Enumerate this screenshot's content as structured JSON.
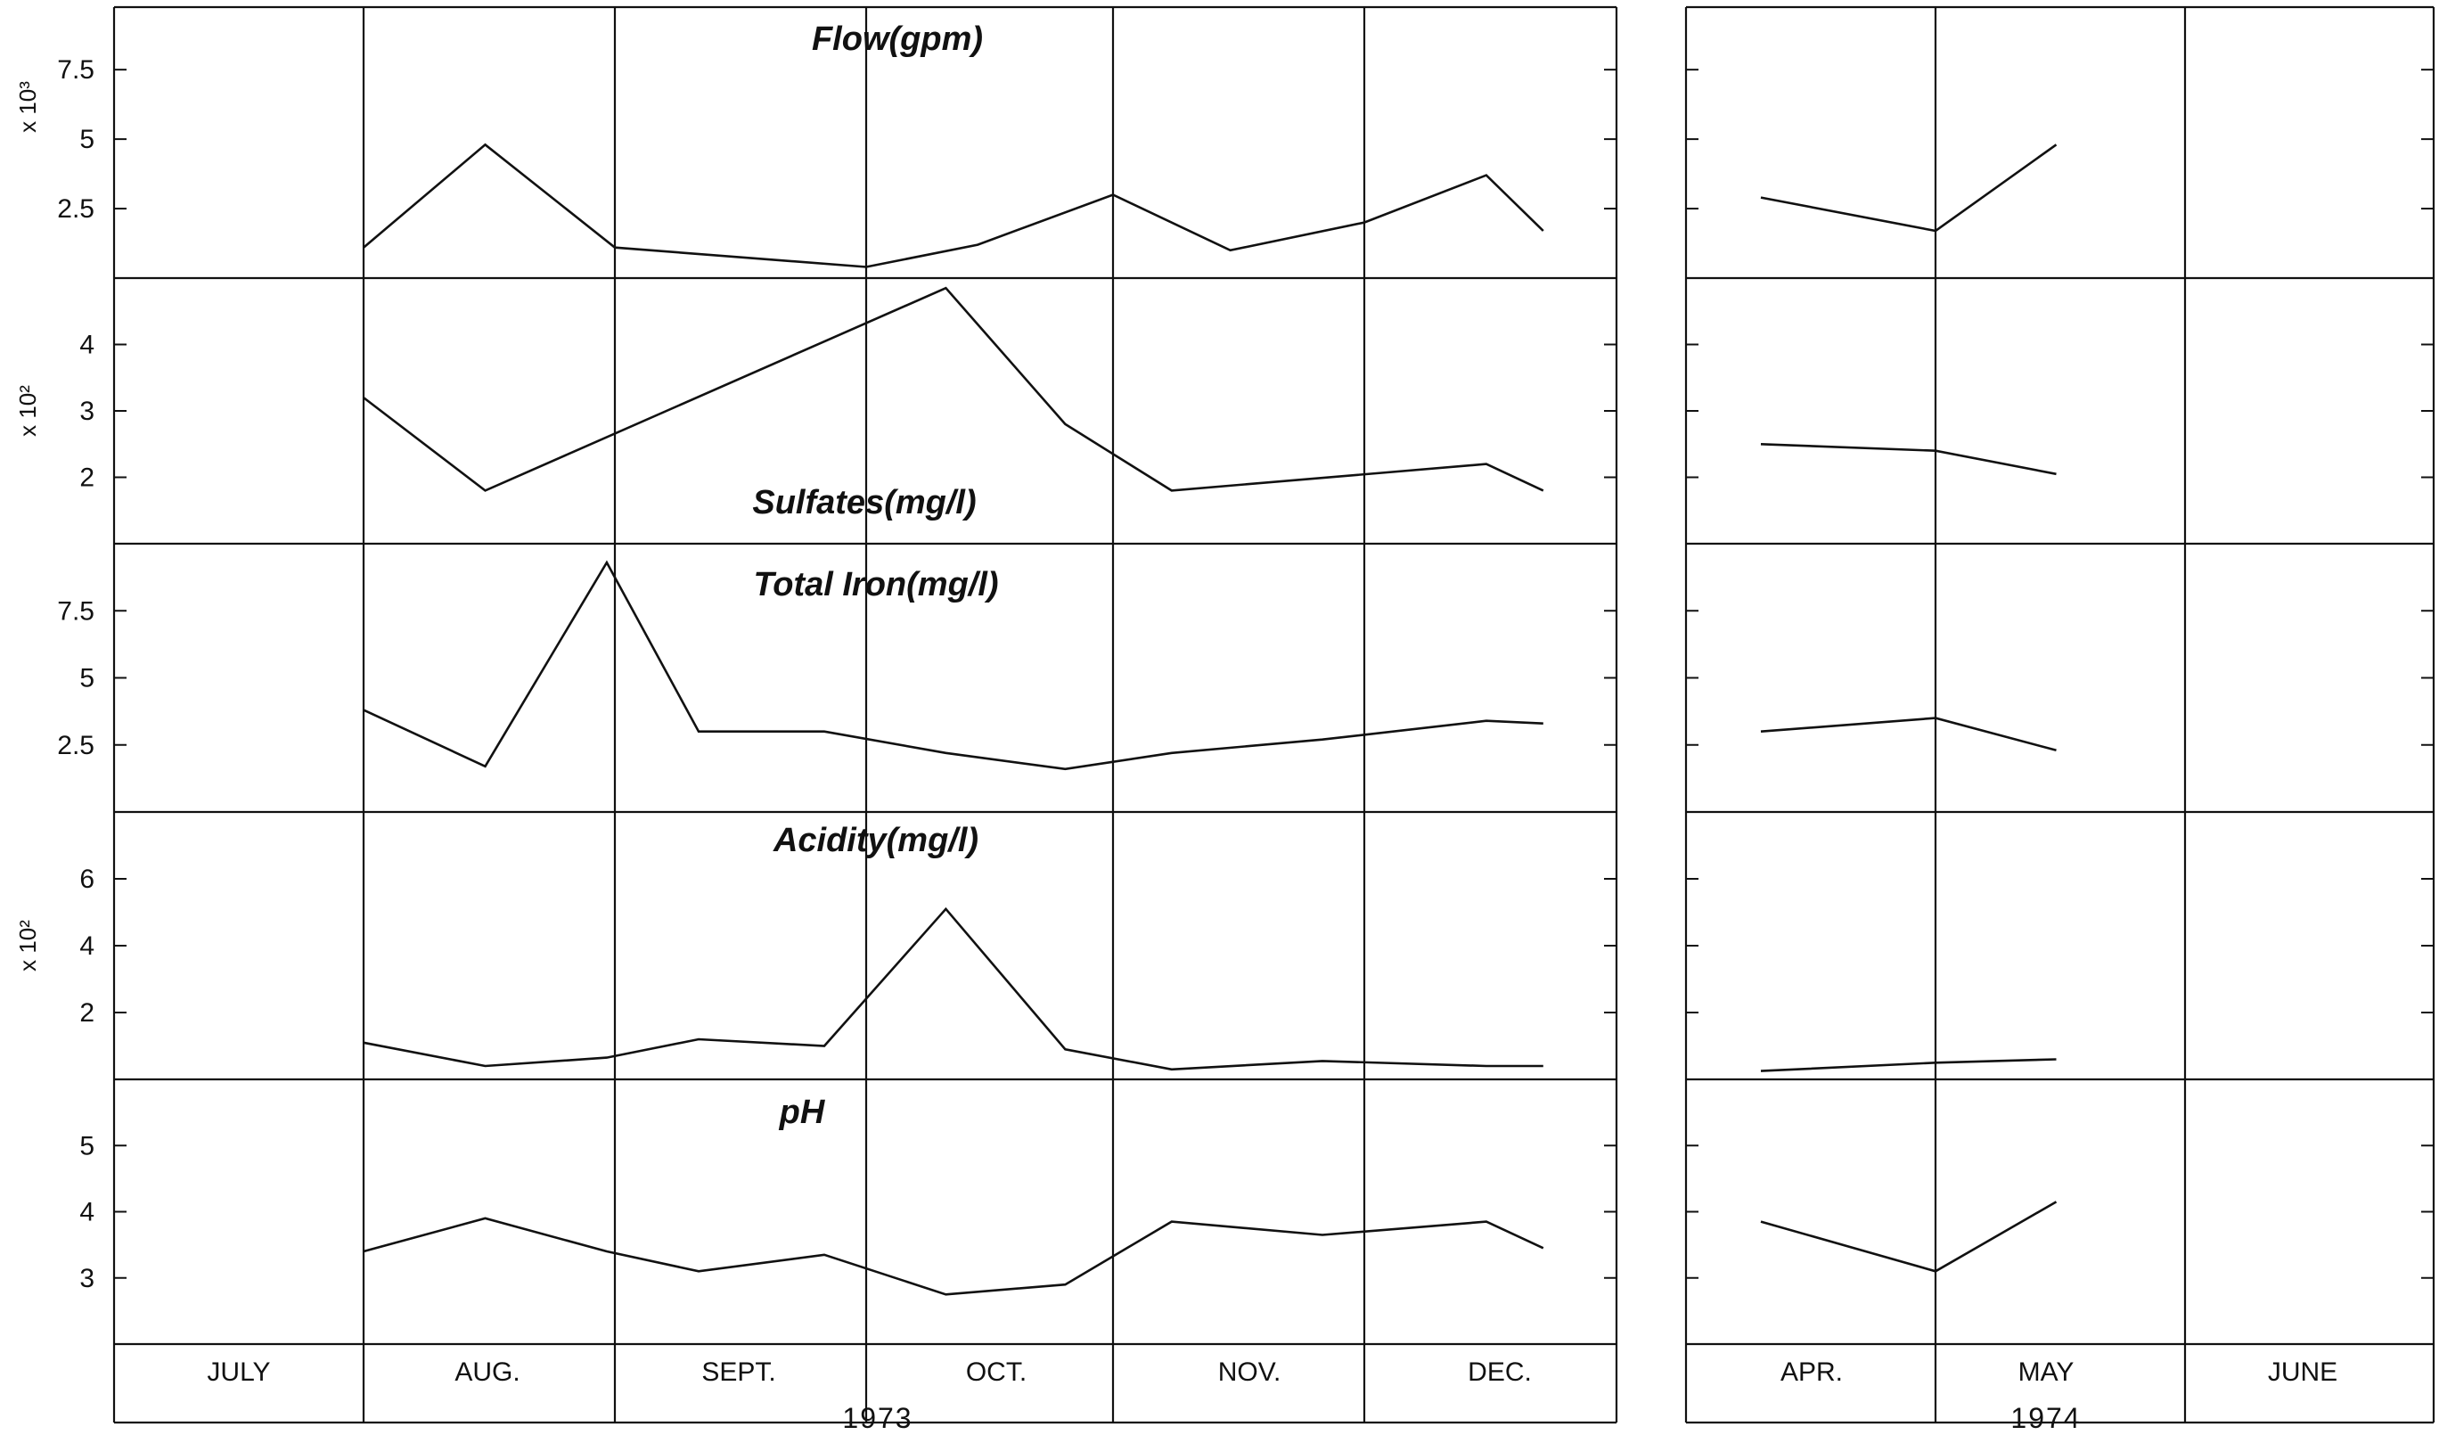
{
  "figure": {
    "months_1973": [
      "JULY",
      "AUG.",
      "SEPT.",
      "OCT.",
      "NOV.",
      "DEC."
    ],
    "months_1974": [
      "APR.",
      "MAY",
      "JUNE"
    ],
    "year_1973": "1973",
    "year_1974": "1974"
  },
  "chart_data": [
    {
      "type": "line",
      "title": "Flow(gpm)",
      "ylabel": "x 10³",
      "yticks": [
        "2.5",
        "5",
        "7.5"
      ],
      "ytick_values": [
        2.5,
        5,
        7.5
      ],
      "ylim": [
        0,
        9.75
      ],
      "segments": [
        {
          "x": [
            "1973-08-01",
            "1973-08-16",
            "1973-09-01",
            "1973-10-01",
            "1973-10-15",
            "1973-11-01",
            "1973-11-15",
            "1973-12-01",
            "1973-12-16",
            "1973-12-23"
          ],
          "y": [
            1.1,
            4.8,
            1.1,
            0.4,
            1.2,
            3.0,
            1.0,
            2.0,
            3.7,
            1.7
          ]
        },
        {
          "x": [
            "1974-04-10",
            "1974-05-01",
            "1974-05-16"
          ],
          "y": [
            2.9,
            1.7,
            4.8
          ]
        }
      ]
    },
    {
      "type": "line",
      "title": "Sulfates(mg/l)",
      "ylabel": "x 10²",
      "yticks": [
        "2",
        "3",
        "4"
      ],
      "ytick_values": [
        2,
        3,
        4
      ],
      "ylim": [
        1,
        5
      ],
      "segments": [
        {
          "x": [
            "1973-08-01",
            "1973-08-16",
            "1973-10-11",
            "1973-10-26",
            "1973-11-08",
            "1973-12-16",
            "1973-12-23"
          ],
          "y": [
            3.2,
            1.8,
            4.85,
            2.8,
            1.8,
            2.2,
            1.8
          ]
        },
        {
          "x": [
            "1974-04-10",
            "1974-05-01",
            "1974-05-16"
          ],
          "y": [
            2.5,
            2.4,
            2.05
          ]
        }
      ]
    },
    {
      "type": "line",
      "title": "Total    Iron(mg/l)",
      "ylabel": "",
      "yticks": [
        "2.5",
        "5",
        "7.5"
      ],
      "ytick_values": [
        2.5,
        5,
        7.5
      ],
      "ylim": [
        0,
        10
      ],
      "segments": [
        {
          "x": [
            "1973-08-01",
            "1973-08-16",
            "1973-08-31",
            "1973-09-11",
            "1973-09-26",
            "1973-10-11",
            "1973-10-26",
            "1973-11-08",
            "1973-11-26",
            "1973-12-16",
            "1973-12-23"
          ],
          "y": [
            3.8,
            1.7,
            9.3,
            3.0,
            3.0,
            2.2,
            1.6,
            2.2,
            2.7,
            3.4,
            3.3
          ]
        },
        {
          "x": [
            "1974-04-10",
            "1974-05-01",
            "1974-05-16"
          ],
          "y": [
            3.0,
            3.5,
            2.3
          ]
        }
      ]
    },
    {
      "type": "line",
      "title": "Acidity(mg/l)",
      "ylabel": "x 10²",
      "yticks": [
        "2",
        "4",
        "6"
      ],
      "ytick_values": [
        2,
        4,
        6
      ],
      "ylim": [
        0,
        8
      ],
      "segments": [
        {
          "x": [
            "1973-08-01",
            "1973-08-16",
            "1973-08-31",
            "1973-09-11",
            "1973-09-26",
            "1973-10-11",
            "1973-10-26",
            "1973-11-08",
            "1973-11-26",
            "1973-12-16",
            "1973-12-23"
          ],
          "y": [
            1.1,
            0.4,
            0.65,
            1.2,
            1.0,
            5.1,
            0.9,
            0.3,
            0.55,
            0.4,
            0.4
          ]
        },
        {
          "x": [
            "1974-04-10",
            "1974-05-01",
            "1974-05-16"
          ],
          "y": [
            0.25,
            0.5,
            0.6
          ]
        }
      ]
    },
    {
      "type": "line",
      "title": "pH",
      "ylabel": "",
      "yticks": [
        "3",
        "4",
        "5"
      ],
      "ytick_values": [
        3,
        4,
        5
      ],
      "ylim": [
        2,
        6
      ],
      "segments": [
        {
          "x": [
            "1973-08-01",
            "1973-08-16",
            "1973-08-31",
            "1973-09-11",
            "1973-09-26",
            "1973-10-11",
            "1973-10-26",
            "1973-11-08",
            "1973-11-26",
            "1973-12-16",
            "1973-12-23"
          ],
          "y": [
            3.4,
            3.9,
            3.4,
            3.1,
            3.35,
            2.75,
            2.9,
            3.85,
            3.65,
            3.85,
            3.45
          ]
        },
        {
          "x": [
            "1974-04-10",
            "1974-05-01",
            "1974-05-16"
          ],
          "y": [
            3.85,
            3.1,
            4.15
          ]
        }
      ]
    }
  ]
}
